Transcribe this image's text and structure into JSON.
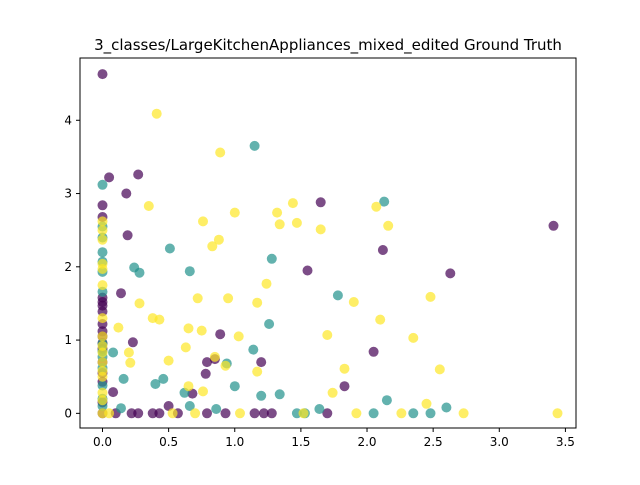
{
  "chart_data": {
    "type": "scatter",
    "title": "3_classes/LargeKitchenAppliances_mixed_edited Ground Truth",
    "xlabel": "",
    "ylabel": "",
    "xlim": [
      -0.17,
      3.58
    ],
    "ylim": [
      -0.2,
      4.85
    ],
    "xticks": [
      "0.0",
      "0.5",
      "1.0",
      "1.5",
      "2.0",
      "2.5",
      "3.0",
      "3.5"
    ],
    "xtick_values": [
      0,
      0.5,
      1.0,
      1.5,
      2.0,
      2.5,
      3.0,
      3.5
    ],
    "yticks": [
      "0",
      "1",
      "2",
      "3",
      "4"
    ],
    "ytick_values": [
      0,
      1,
      2,
      3,
      4
    ],
    "grid": false,
    "legend": "none",
    "series": [
      {
        "color": "#440154",
        "points": [
          [
            0.0,
            4.63
          ],
          [
            0.05,
            3.22
          ],
          [
            0.18,
            3.0
          ],
          [
            0.27,
            3.26
          ],
          [
            0.0,
            2.84
          ],
          [
            0.0,
            2.68
          ],
          [
            0.19,
            2.43
          ],
          [
            0.14,
            1.64
          ],
          [
            0.0,
            1.58
          ],
          [
            0.0,
            1.52
          ],
          [
            0.0,
            1.47
          ],
          [
            0.0,
            1.39
          ],
          [
            0.0,
            1.22
          ],
          [
            0.0,
            1.12
          ],
          [
            0.0,
            1.05
          ],
          [
            0.0,
            0.96
          ],
          [
            0.0,
            0.88
          ],
          [
            0.0,
            0.7
          ],
          [
            0.0,
            0.55
          ],
          [
            0.0,
            0.43
          ],
          [
            0.23,
            0.97
          ],
          [
            0.08,
            0.29
          ],
          [
            0.0,
            0.15
          ],
          [
            0.0,
            0.0
          ],
          [
            0.1,
            0.0
          ],
          [
            0.22,
            0.0
          ],
          [
            0.27,
            0.0
          ],
          [
            0.38,
            0.0
          ],
          [
            0.43,
            0.0
          ],
          [
            0.5,
            0.1
          ],
          [
            0.57,
            0.0
          ],
          [
            0.68,
            0.27
          ],
          [
            0.79,
            0.0
          ],
          [
            0.79,
            0.7
          ],
          [
            0.85,
            0.74
          ],
          [
            0.89,
            1.08
          ],
          [
            0.78,
            0.54
          ],
          [
            0.93,
            0.0
          ],
          [
            1.15,
            0.0
          ],
          [
            1.2,
            0.7
          ],
          [
            1.22,
            0.0
          ],
          [
            1.28,
            0.0
          ],
          [
            1.55,
            1.95
          ],
          [
            1.65,
            2.88
          ],
          [
            1.7,
            0.0
          ],
          [
            1.83,
            0.37
          ],
          [
            2.05,
            0.84
          ],
          [
            2.12,
            2.23
          ],
          [
            2.63,
            1.91
          ],
          [
            3.41,
            2.56
          ]
        ]
      },
      {
        "color": "#21918c",
        "points": [
          [
            0.0,
            3.12
          ],
          [
            0.0,
            2.55
          ],
          [
            0.0,
            2.4
          ],
          [
            0.0,
            2.2
          ],
          [
            0.0,
            2.07
          ],
          [
            0.0,
            1.93
          ],
          [
            0.0,
            1.66
          ],
          [
            0.0,
            0.95
          ],
          [
            0.0,
            0.85
          ],
          [
            0.0,
            0.77
          ],
          [
            0.0,
            0.62
          ],
          [
            0.0,
            0.38
          ],
          [
            0.0,
            0.2
          ],
          [
            0.0,
            0.1
          ],
          [
            0.08,
            0.83
          ],
          [
            0.16,
            0.47
          ],
          [
            0.14,
            0.07
          ],
          [
            0.24,
            1.99
          ],
          [
            0.28,
            1.92
          ],
          [
            0.4,
            0.4
          ],
          [
            0.46,
            0.47
          ],
          [
            0.51,
            2.25
          ],
          [
            0.62,
            0.28
          ],
          [
            0.66,
            1.94
          ],
          [
            0.66,
            0.1
          ],
          [
            0.86,
            0.06
          ],
          [
            0.94,
            0.68
          ],
          [
            1.0,
            0.37
          ],
          [
            1.14,
            0.87
          ],
          [
            1.15,
            3.65
          ],
          [
            1.2,
            0.24
          ],
          [
            1.26,
            1.22
          ],
          [
            1.28,
            2.11
          ],
          [
            1.34,
            0.26
          ],
          [
            1.47,
            0.0
          ],
          [
            1.53,
            0.0
          ],
          [
            1.64,
            0.06
          ],
          [
            1.78,
            1.61
          ],
          [
            2.05,
            0.0
          ],
          [
            2.13,
            2.89
          ],
          [
            2.15,
            0.18
          ],
          [
            2.35,
            0.0
          ],
          [
            2.48,
            0.0
          ],
          [
            2.6,
            0.08
          ]
        ]
      },
      {
        "color": "#fde725",
        "points": [
          [
            0.0,
            2.62
          ],
          [
            0.0,
            2.5
          ],
          [
            0.0,
            2.37
          ],
          [
            0.0,
            2.04
          ],
          [
            0.0,
            1.97
          ],
          [
            0.0,
            1.75
          ],
          [
            0.0,
            1.3
          ],
          [
            0.0,
            1.05
          ],
          [
            0.0,
            0.92
          ],
          [
            0.0,
            0.83
          ],
          [
            0.0,
            0.7
          ],
          [
            0.0,
            0.58
          ],
          [
            0.0,
            0.5
          ],
          [
            0.0,
            0.28
          ],
          [
            0.0,
            0.18
          ],
          [
            0.0,
            0.0
          ],
          [
            0.05,
            0.0
          ],
          [
            0.12,
            1.17
          ],
          [
            0.2,
            0.83
          ],
          [
            0.21,
            0.69
          ],
          [
            0.28,
            1.5
          ],
          [
            0.35,
            2.83
          ],
          [
            0.38,
            1.3
          ],
          [
            0.41,
            4.09
          ],
          [
            0.43,
            1.28
          ],
          [
            0.5,
            0.72
          ],
          [
            0.53,
            0.0
          ],
          [
            0.63,
            0.9
          ],
          [
            0.65,
            1.16
          ],
          [
            0.65,
            0.37
          ],
          [
            0.7,
            0.0
          ],
          [
            0.72,
            1.57
          ],
          [
            0.75,
            1.13
          ],
          [
            0.76,
            2.62
          ],
          [
            0.76,
            0.3
          ],
          [
            0.83,
            2.28
          ],
          [
            0.85,
            0.77
          ],
          [
            0.88,
            2.37
          ],
          [
            0.89,
            3.56
          ],
          [
            0.93,
            0.65
          ],
          [
            0.95,
            1.57
          ],
          [
            1.0,
            2.74
          ],
          [
            1.03,
            1.05
          ],
          [
            1.04,
            0.0
          ],
          [
            1.17,
            1.51
          ],
          [
            1.17,
            0.57
          ],
          [
            1.24,
            1.77
          ],
          [
            1.32,
            2.74
          ],
          [
            1.34,
            2.58
          ],
          [
            1.44,
            2.87
          ],
          [
            1.47,
            2.6
          ],
          [
            1.52,
            0.0
          ],
          [
            1.65,
            2.51
          ],
          [
            1.7,
            1.07
          ],
          [
            1.74,
            0.28
          ],
          [
            1.83,
            0.61
          ],
          [
            1.9,
            1.52
          ],
          [
            1.92,
            0.0
          ],
          [
            2.07,
            2.82
          ],
          [
            2.1,
            1.28
          ],
          [
            2.16,
            2.56
          ],
          [
            2.26,
            0.0
          ],
          [
            2.35,
            1.03
          ],
          [
            2.45,
            0.13
          ],
          [
            2.48,
            1.59
          ],
          [
            2.55,
            0.6
          ],
          [
            2.73,
            0.0
          ],
          [
            3.44,
            0.0
          ]
        ]
      }
    ]
  }
}
